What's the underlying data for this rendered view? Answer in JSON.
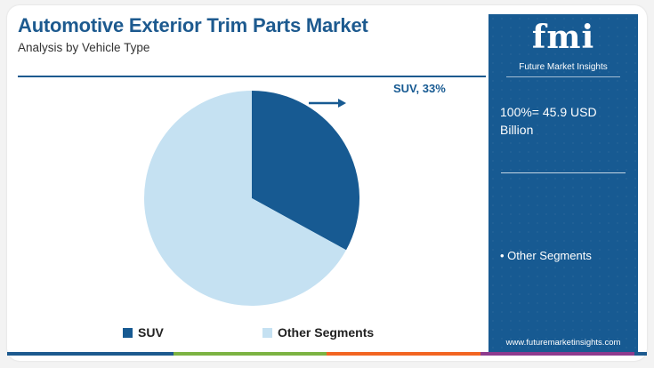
{
  "header": {
    "title": "Automotive Exterior Trim Parts Market",
    "subtitle": "Analysis by Vehicle Type"
  },
  "side_panel": {
    "logo_text": "fmi",
    "logo_tagline": "Future Market Insights",
    "total_line1": "100%= 45.9 USD",
    "total_line2": "Billion",
    "bullet_text": "• Other Segments",
    "website": "www.futuremarketinsights.com",
    "color": "#175a92"
  },
  "chart_data": {
    "type": "pie",
    "title": "",
    "categories": [
      "SUV",
      "Other Segments"
    ],
    "values": [
      33,
      67
    ],
    "unit": "%",
    "colors": [
      "#175a92",
      "#c5e1f2"
    ],
    "slice_labels": [
      "SUV, 33%",
      ""
    ],
    "start_angle": "12 o'clock, clockwise",
    "legend": {
      "placement": "bottom",
      "items": [
        {
          "label": "SUV",
          "color": "#175a92"
        },
        {
          "label": "Other Segments",
          "color": "#c5e1f2"
        }
      ]
    }
  },
  "footer_bar_colors": [
    "#1d5a8f",
    "#7cb342",
    "#f26522",
    "#8e3b8e",
    "#1d5a8f"
  ]
}
